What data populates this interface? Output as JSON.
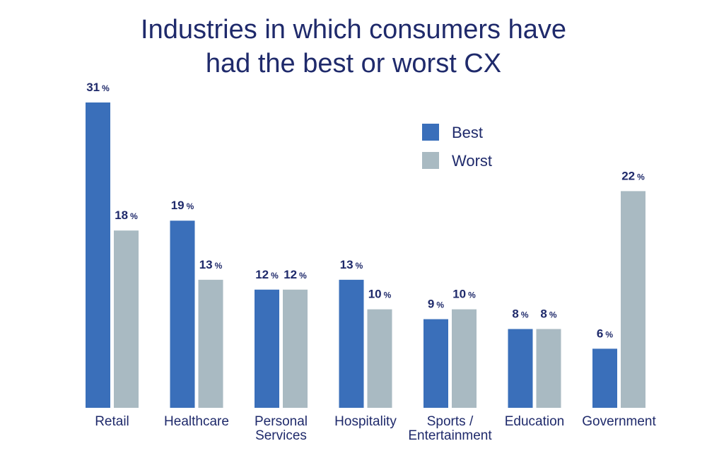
{
  "chart_data": {
    "type": "bar",
    "title_lines": [
      "Industries in which consumers have",
      "had the best or worst CX"
    ],
    "categories": [
      [
        "Retail"
      ],
      [
        "Healthcare"
      ],
      [
        "Personal",
        "Services"
      ],
      [
        "Hospitality"
      ],
      [
        "Sports /",
        "Entertainment"
      ],
      [
        "Education"
      ],
      [
        "Government"
      ]
    ],
    "series": [
      {
        "name": "Best",
        "color": "#3a6fba",
        "values": [
          31,
          19,
          12,
          13,
          9,
          8,
          6
        ]
      },
      {
        "name": "Worst",
        "color": "#a9bac2",
        "values": [
          18,
          13,
          12,
          10,
          10,
          8,
          22
        ]
      }
    ],
    "value_suffix": "%",
    "ylim": [
      0,
      31
    ],
    "legend": "top-right",
    "grid": false
  }
}
